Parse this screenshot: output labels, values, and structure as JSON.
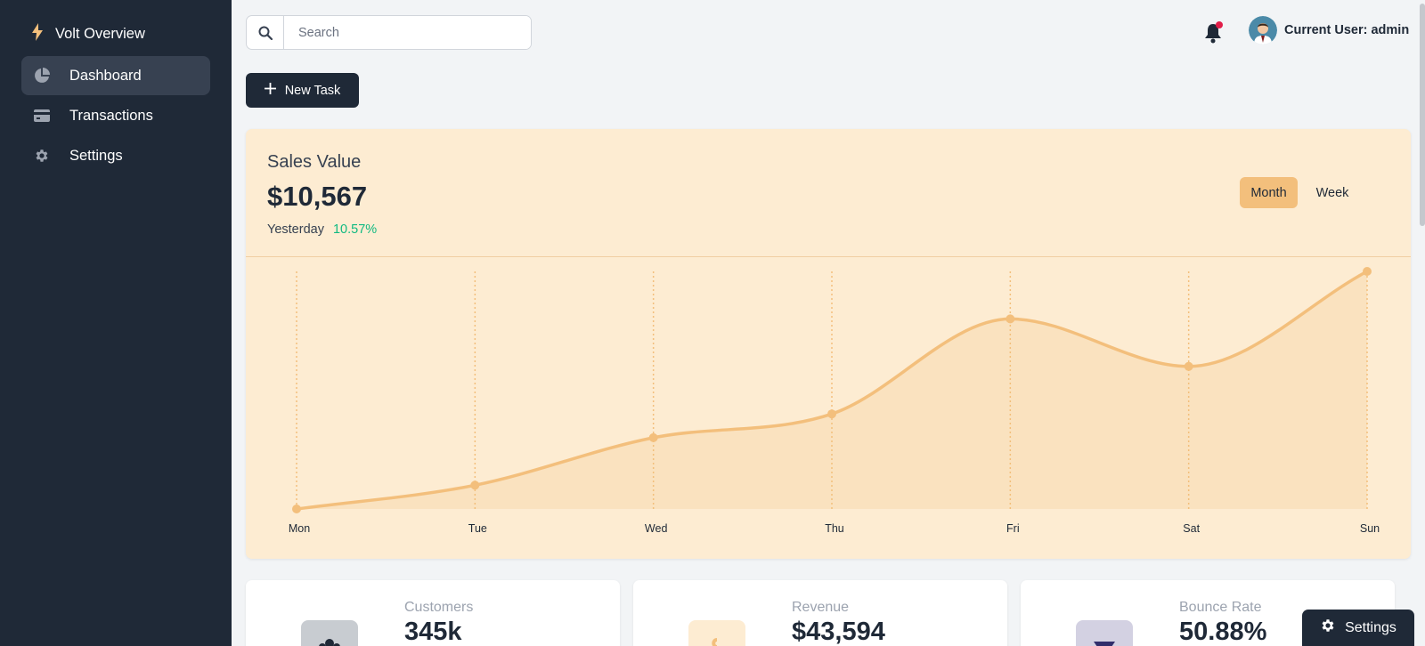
{
  "sidebar": {
    "brand": "Volt Overview",
    "items": [
      {
        "label": "Dashboard",
        "icon": "pie-chart-icon"
      },
      {
        "label": "Transactions",
        "icon": "credit-card-icon"
      },
      {
        "label": "Settings",
        "icon": "gear-icon"
      }
    ]
  },
  "header": {
    "search_placeholder": "Search",
    "user_label": "Current User: admin"
  },
  "actions": {
    "new_task_label": "New Task"
  },
  "sales": {
    "title": "Sales Value",
    "value": "$10,567",
    "period_label": "Yesterday",
    "change": "10.57%",
    "tabs": [
      "Month",
      "Week"
    ]
  },
  "chart_data": {
    "type": "area",
    "categories": [
      "Mon",
      "Tue",
      "Wed",
      "Thu",
      "Fri",
      "Sat",
      "Sun"
    ],
    "values": [
      0,
      10,
      30,
      40,
      80,
      60,
      100
    ],
    "ylim": [
      0,
      100
    ],
    "title": "",
    "xlabel": "",
    "ylabel": "",
    "grid": "vertical dotted",
    "color": "#f3bf7c"
  },
  "stats": [
    {
      "label": "Customers",
      "value": "345k"
    },
    {
      "label": "Revenue",
      "value": "$43,594"
    },
    {
      "label": "Bounce Rate",
      "value": "50.88%"
    }
  ],
  "floating": {
    "settings_label": "Settings"
  },
  "colors": {
    "sidebar": "#1f2937",
    "accent": "#f3bf7c",
    "positive": "#10b981",
    "notification": "#e11d48"
  }
}
